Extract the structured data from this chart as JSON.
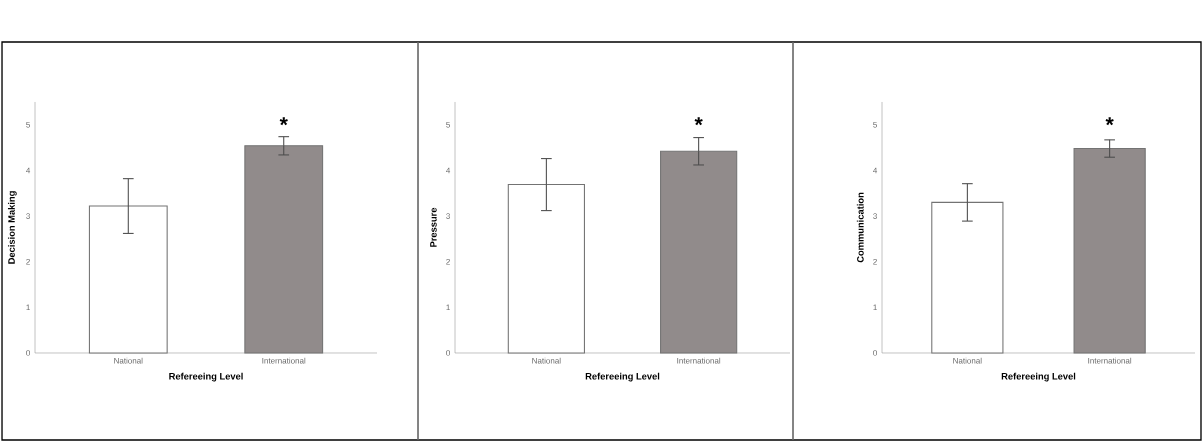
{
  "chart_data": [
    {
      "type": "bar",
      "ylabel": "Decision Making",
      "xlabel": "Refereeing Level",
      "categories": [
        "National",
        "International"
      ],
      "values": [
        3.22,
        4.54
      ],
      "errors": [
        0.6,
        0.2
      ],
      "colors": [
        "#ffffff",
        "#918b8b"
      ],
      "ylim": [
        0,
        5.5
      ],
      "yticks": [
        0,
        1,
        2,
        3,
        4,
        5
      ],
      "annotations": [
        "*"
      ]
    },
    {
      "type": "bar",
      "ylabel": "Pressure",
      "xlabel": "Refereeing Level",
      "categories": [
        "National",
        "International"
      ],
      "values": [
        3.69,
        4.42
      ],
      "errors": [
        0.57,
        0.3
      ],
      "colors": [
        "#ffffff",
        "#918b8b"
      ],
      "ylim": [
        0,
        5.5
      ],
      "yticks": [
        0,
        1,
        2,
        3,
        4,
        5
      ],
      "annotations": [
        "*"
      ]
    },
    {
      "type": "bar",
      "ylabel": "Communication",
      "xlabel": "Refereeing Level",
      "categories": [
        "National",
        "International"
      ],
      "values": [
        3.3,
        4.48
      ],
      "errors": [
        0.41,
        0.19
      ],
      "colors": [
        "#ffffff",
        "#918b8b"
      ],
      "ylim": [
        0,
        5.5
      ],
      "yticks": [
        0,
        1,
        2,
        3,
        4,
        5
      ],
      "annotations": [
        "*"
      ]
    }
  ]
}
